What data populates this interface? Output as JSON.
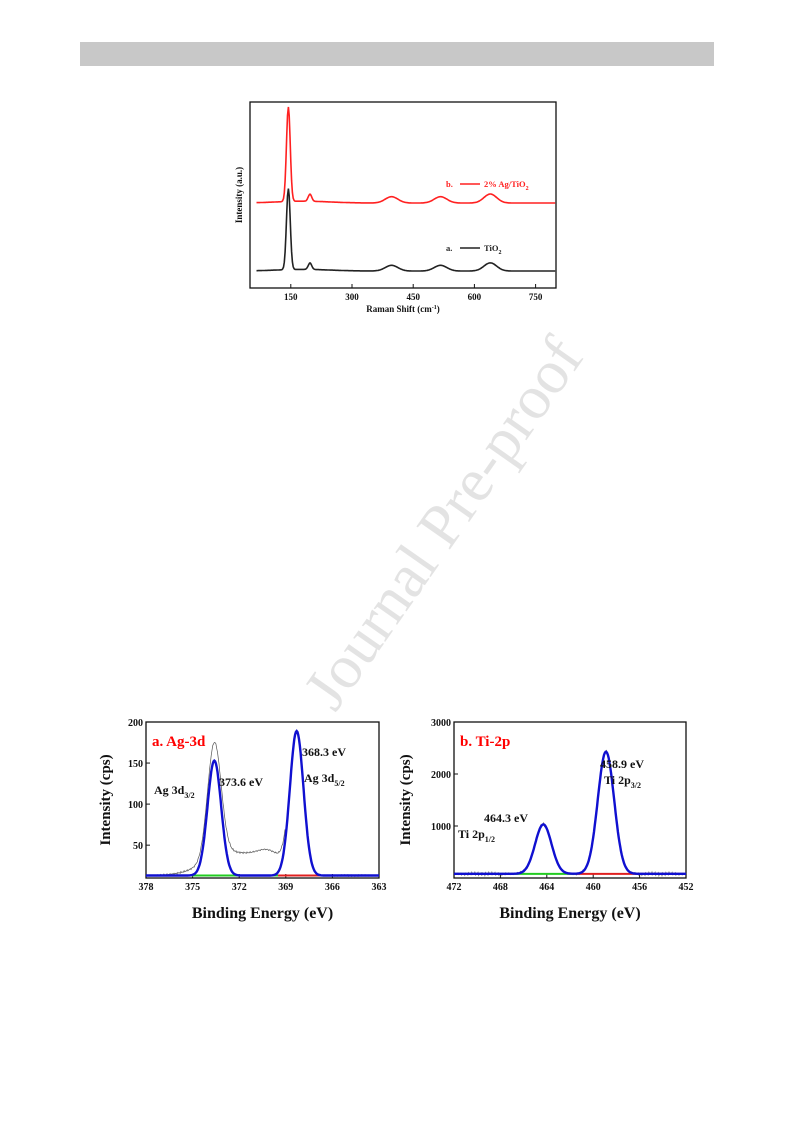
{
  "watermark": "Journal Pre-proof",
  "chart_data": [
    {
      "type": "line",
      "xlabel": "Raman Shift (cm",
      "xlabel_sup": "-1",
      "xlabel_end": ")",
      "ylabel": "Intensity (a.u.)",
      "xlim": [
        50,
        800
      ],
      "xticks": [
        150,
        300,
        450,
        600,
        750
      ],
      "grid": false,
      "series": [
        {
          "name": "TiO",
          "name_sub": "2",
          "label_prefix": "a.",
          "color": "#222222",
          "peaks": [
            [
              144,
              1.0
            ],
            [
              197,
              0.08
            ],
            [
              397,
              0.07
            ],
            [
              517,
              0.07
            ],
            [
              639,
              0.1
            ]
          ]
        },
        {
          "name": "2% Ag/TiO",
          "name_sub": "2",
          "label_prefix": "b.",
          "color": "#ff2020",
          "peaks": [
            [
              144,
              1.05
            ],
            [
              197,
              0.08
            ],
            [
              397,
              0.07
            ],
            [
              517,
              0.07
            ],
            [
              639,
              0.1
            ]
          ]
        }
      ]
    },
    {
      "type": "line",
      "title": "a. Ag-3d",
      "xlabel": "Binding Energy (eV)",
      "ylabel": "Intensity (cps)",
      "xlim": [
        378,
        363
      ],
      "ylim": [
        10,
        200
      ],
      "xticks": [
        378,
        375,
        372,
        369,
        366,
        363
      ],
      "yticks": [
        50,
        100,
        150,
        200
      ],
      "peaks": [
        {
          "energy": 373.6,
          "height": 140,
          "name": "Ag 3d",
          "sub": "3/2",
          "energy_label": "373.6 eV"
        },
        {
          "energy": 368.3,
          "height": 176,
          "name": "Ag 3d",
          "sub": "5/2",
          "energy_label": "368.3 eV"
        }
      ],
      "baseline": 13,
      "colors": {
        "fit": "#1010d0",
        "raw": "#555555",
        "bg1": "#22cc22",
        "bg2": "#e02020",
        "title": "#ff0000"
      }
    },
    {
      "type": "line",
      "title": "b. Ti-2p",
      "xlabel": "Binding Energy (eV)",
      "ylabel": "Intensity (cps)",
      "xlim": [
        472,
        452
      ],
      "ylim": [
        0,
        3000
      ],
      "xticks": [
        472,
        468,
        464,
        460,
        456,
        452
      ],
      "yticks": [
        1000,
        2000,
        3000
      ],
      "peaks": [
        {
          "energy": 464.3,
          "height": 950,
          "name": "Ti 2p",
          "sub": "1/2",
          "energy_label": "464.3 eV"
        },
        {
          "energy": 458.9,
          "height": 2350,
          "name": "Ti 2p",
          "sub": "3/2",
          "energy_label": "458.9 eV"
        }
      ],
      "baseline": 80,
      "colors": {
        "fit": "#1010d0",
        "raw": "#555555",
        "bg1": "#22cc22",
        "bg2": "#e02020",
        "title": "#ff0000"
      }
    }
  ]
}
